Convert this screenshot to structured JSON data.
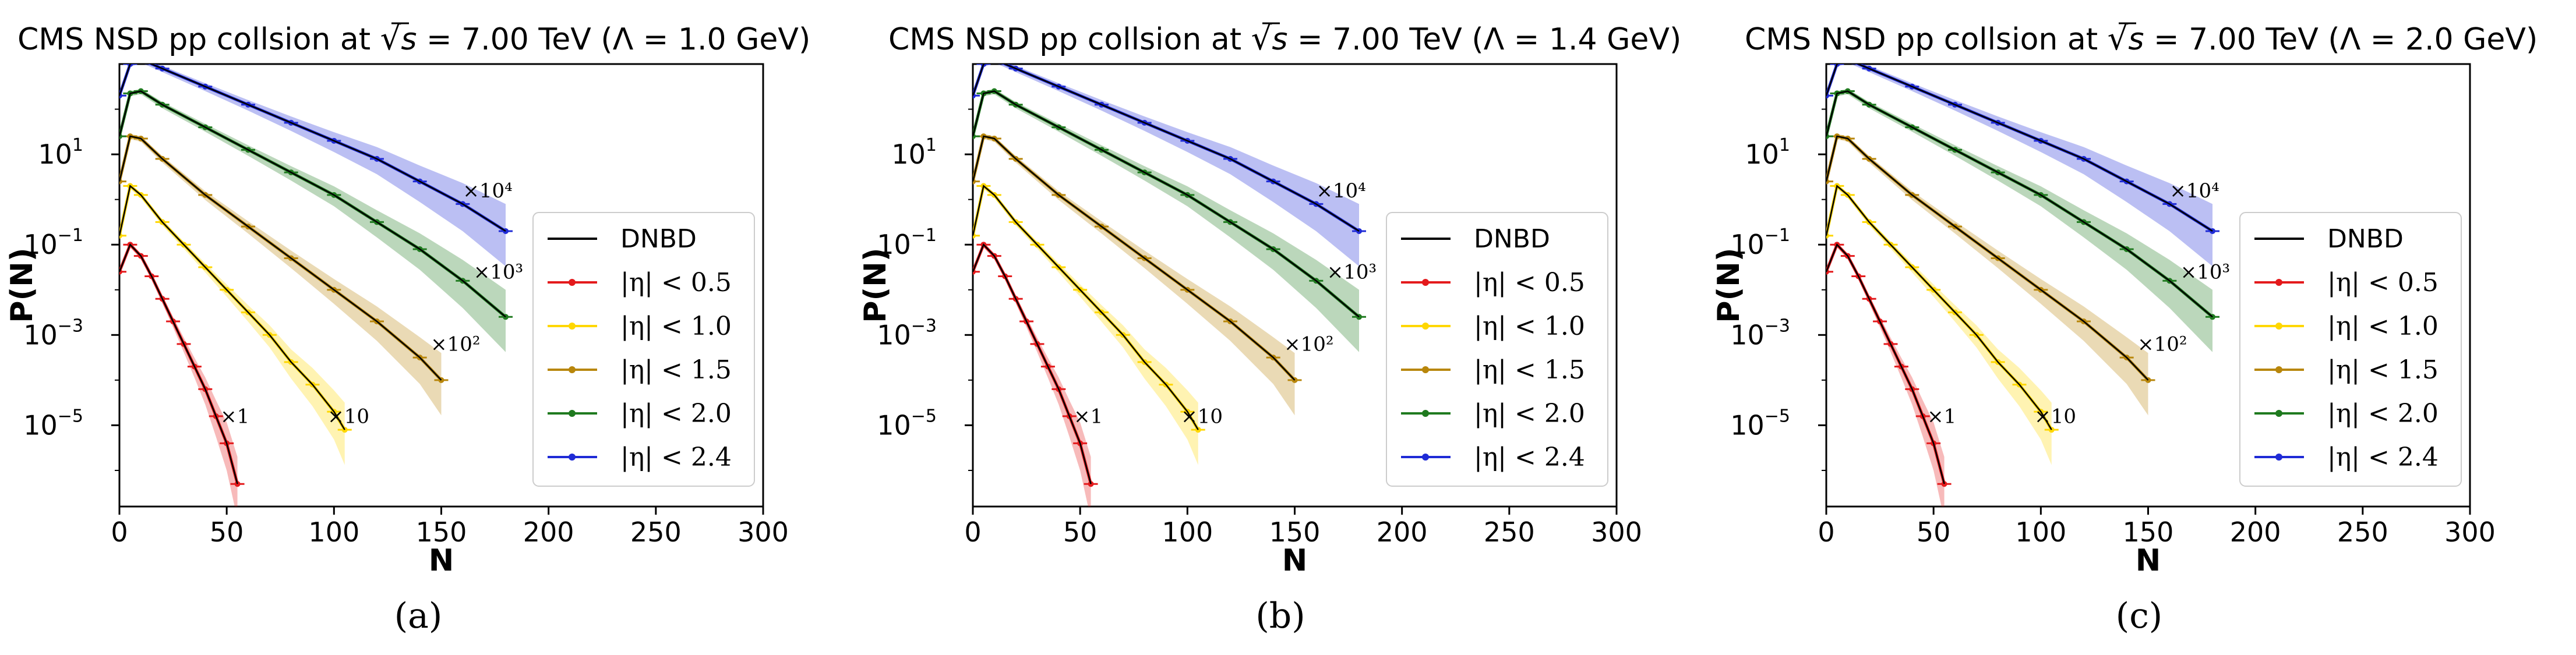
{
  "colors": {
    "model": "#000000",
    "eta05": "#e41a1c",
    "eta10": "#ffd700",
    "eta15": "#b8860b",
    "eta20": "#1f7a1f",
    "eta24": "#1f2bd6"
  },
  "chart_data": [
    {
      "type": "line",
      "title": "CMS NSD pp collsion at √s = 7.00 TeV (Λ = 1.0 GeV)",
      "title_parts": {
        "prefix": "CMS NSD pp collsion at ",
        "sqrt": "√",
        "s": "s",
        "eq": " = 7.00 TeV (",
        "lambda": "Λ = 1.0 GeV",
        "close": ")"
      },
      "sublabel": "(a)",
      "xlabel": "N",
      "ylabel": "P(N)",
      "xlim": [
        0,
        300
      ],
      "ylim_log10": [
        -6.8,
        3.0
      ],
      "xticks": [
        "0",
        "50",
        "100",
        "150",
        "200",
        "250",
        "300"
      ],
      "yticks": [
        {
          "base": "10",
          "exp": "1"
        },
        {
          "base": "10",
          "exp": "−1"
        },
        {
          "base": "10",
          "exp": "−3"
        },
        {
          "base": "10",
          "exp": "−5"
        }
      ],
      "legend": {
        "placement": "center-right",
        "model": "DNBD",
        "entries": [
          "|η| < 0.5",
          "|η| < 1.0",
          "|η| < 1.5",
          "|η| < 2.0",
          "|η| < 2.4"
        ]
      },
      "multipliers": [
        "×1",
        "×10",
        "×10²",
        "×10³",
        "×10⁴"
      ],
      "series": [
        {
          "name": "|η| < 0.5",
          "color": "eta05",
          "x": [
            0,
            5,
            10,
            15,
            20,
            25,
            30,
            35,
            40,
            45,
            50,
            55
          ],
          "log10_y": [
            -1.6,
            -1.0,
            -1.25,
            -1.7,
            -2.2,
            -2.7,
            -3.2,
            -3.7,
            -4.2,
            -4.8,
            -5.4,
            -6.3
          ]
        },
        {
          "name": "|η| < 1.0",
          "color": "eta10",
          "x": [
            0,
            5,
            10,
            20,
            30,
            40,
            50,
            60,
            70,
            80,
            90,
            100,
            105
          ],
          "log10_y": [
            -0.8,
            0.3,
            0.1,
            -0.5,
            -1.0,
            -1.5,
            -2.0,
            -2.5,
            -3.0,
            -3.6,
            -4.1,
            -4.7,
            -5.1
          ]
        },
        {
          "name": "|η| < 1.5",
          "color": "eta15",
          "x": [
            0,
            5,
            10,
            20,
            40,
            60,
            80,
            100,
            120,
            140,
            150
          ],
          "log10_y": [
            0.4,
            1.4,
            1.35,
            0.9,
            0.1,
            -0.6,
            -1.3,
            -2.0,
            -2.7,
            -3.5,
            -4.0
          ]
        },
        {
          "name": "|η| < 2.0",
          "color": "eta20",
          "x": [
            0,
            5,
            10,
            20,
            40,
            60,
            80,
            100,
            120,
            140,
            160,
            180
          ],
          "log10_y": [
            1.4,
            2.35,
            2.4,
            2.1,
            1.6,
            1.1,
            0.6,
            0.1,
            -0.5,
            -1.1,
            -1.8,
            -2.6
          ]
        },
        {
          "name": "|η| < 2.4",
          "color": "eta24",
          "x": [
            0,
            5,
            10,
            20,
            40,
            60,
            80,
            100,
            120,
            140,
            160,
            180
          ],
          "log10_y": [
            2.3,
            3.0,
            3.1,
            2.9,
            2.5,
            2.1,
            1.7,
            1.3,
            0.9,
            0.4,
            -0.1,
            -0.7
          ]
        }
      ]
    },
    {
      "type": "line",
      "title": "CMS NSD pp collsion at √s = 7.00 TeV (Λ = 1.4 GeV)",
      "title_parts": {
        "prefix": "CMS NSD pp collsion at ",
        "sqrt": "√",
        "s": "s",
        "eq": " = 7.00 TeV (",
        "lambda": "Λ = 1.4 GeV",
        "close": ")"
      },
      "sublabel": "(b)",
      "xlabel": "N",
      "ylabel": "P(N)",
      "xlim": [
        0,
        300
      ],
      "ylim_log10": [
        -6.8,
        3.0
      ],
      "xticks": [
        "0",
        "50",
        "100",
        "150",
        "200",
        "250",
        "300"
      ],
      "yticks": [
        {
          "base": "10",
          "exp": "1"
        },
        {
          "base": "10",
          "exp": "−1"
        },
        {
          "base": "10",
          "exp": "−3"
        },
        {
          "base": "10",
          "exp": "−5"
        }
      ],
      "legend": {
        "placement": "center-right",
        "model": "DNBD",
        "entries": [
          "|η| < 0.5",
          "|η| < 1.0",
          "|η| < 1.5",
          "|η| < 2.0",
          "|η| < 2.4"
        ]
      },
      "multipliers": [
        "×1",
        "×10",
        "×10²",
        "×10³",
        "×10⁴"
      ],
      "series": [
        {
          "name": "|η| < 0.5",
          "color": "eta05",
          "x": [
            0,
            5,
            10,
            15,
            20,
            25,
            30,
            35,
            40,
            45,
            50,
            55
          ],
          "log10_y": [
            -1.6,
            -1.0,
            -1.25,
            -1.7,
            -2.2,
            -2.7,
            -3.2,
            -3.7,
            -4.2,
            -4.8,
            -5.4,
            -6.3
          ]
        },
        {
          "name": "|η| < 1.0",
          "color": "eta10",
          "x": [
            0,
            5,
            10,
            20,
            30,
            40,
            50,
            60,
            70,
            80,
            90,
            100,
            105
          ],
          "log10_y": [
            -0.8,
            0.3,
            0.1,
            -0.5,
            -1.0,
            -1.5,
            -2.0,
            -2.5,
            -3.0,
            -3.6,
            -4.1,
            -4.7,
            -5.1
          ]
        },
        {
          "name": "|η| < 1.5",
          "color": "eta15",
          "x": [
            0,
            5,
            10,
            20,
            40,
            60,
            80,
            100,
            120,
            140,
            150
          ],
          "log10_y": [
            0.4,
            1.4,
            1.35,
            0.9,
            0.1,
            -0.6,
            -1.3,
            -2.0,
            -2.7,
            -3.5,
            -4.0
          ]
        },
        {
          "name": "|η| < 2.0",
          "color": "eta20",
          "x": [
            0,
            5,
            10,
            20,
            40,
            60,
            80,
            100,
            120,
            140,
            160,
            180
          ],
          "log10_y": [
            1.4,
            2.35,
            2.4,
            2.1,
            1.6,
            1.1,
            0.6,
            0.1,
            -0.5,
            -1.1,
            -1.8,
            -2.6
          ]
        },
        {
          "name": "|η| < 2.4",
          "color": "eta24",
          "x": [
            0,
            5,
            10,
            20,
            40,
            60,
            80,
            100,
            120,
            140,
            160,
            180
          ],
          "log10_y": [
            2.3,
            3.0,
            3.1,
            2.9,
            2.5,
            2.1,
            1.7,
            1.3,
            0.9,
            0.4,
            -0.1,
            -0.7
          ]
        }
      ]
    },
    {
      "type": "line",
      "title": "CMS NSD pp collsion at √s = 7.00 TeV (Λ = 2.0 GeV)",
      "title_parts": {
        "prefix": "CMS NSD pp collsion at ",
        "sqrt": "√",
        "s": "s",
        "eq": " = 7.00 TeV (",
        "lambda": "Λ = 2.0 GeV",
        "close": ")"
      },
      "sublabel": "(c)",
      "xlabel": "N",
      "ylabel": "P(N)",
      "xlim": [
        0,
        300
      ],
      "ylim_log10": [
        -6.8,
        3.0
      ],
      "xticks": [
        "0",
        "50",
        "100",
        "150",
        "200",
        "250",
        "300"
      ],
      "yticks": [
        {
          "base": "10",
          "exp": "1"
        },
        {
          "base": "10",
          "exp": "−1"
        },
        {
          "base": "10",
          "exp": "−3"
        },
        {
          "base": "10",
          "exp": "−5"
        }
      ],
      "legend": {
        "placement": "center-right",
        "model": "DNBD",
        "entries": [
          "|η| < 0.5",
          "|η| < 1.0",
          "|η| < 1.5",
          "|η| < 2.0",
          "|η| < 2.4"
        ]
      },
      "multipliers": [
        "×1",
        "×10",
        "×10²",
        "×10³",
        "×10⁴"
      ],
      "series": [
        {
          "name": "|η| < 0.5",
          "color": "eta05",
          "x": [
            0,
            5,
            10,
            15,
            20,
            25,
            30,
            35,
            40,
            45,
            50,
            55
          ],
          "log10_y": [
            -1.6,
            -1.0,
            -1.25,
            -1.7,
            -2.2,
            -2.7,
            -3.2,
            -3.7,
            -4.2,
            -4.8,
            -5.4,
            -6.3
          ]
        },
        {
          "name": "|η| < 1.0",
          "color": "eta10",
          "x": [
            0,
            5,
            10,
            20,
            30,
            40,
            50,
            60,
            70,
            80,
            90,
            100,
            105
          ],
          "log10_y": [
            -0.8,
            0.3,
            0.1,
            -0.5,
            -1.0,
            -1.5,
            -2.0,
            -2.5,
            -3.0,
            -3.6,
            -4.1,
            -4.7,
            -5.1
          ]
        },
        {
          "name": "|η| < 1.5",
          "color": "eta15",
          "x": [
            0,
            5,
            10,
            20,
            40,
            60,
            80,
            100,
            120,
            140,
            150
          ],
          "log10_y": [
            0.4,
            1.4,
            1.35,
            0.9,
            0.1,
            -0.6,
            -1.3,
            -2.0,
            -2.7,
            -3.5,
            -4.0
          ]
        },
        {
          "name": "|η| < 2.0",
          "color": "eta20",
          "x": [
            0,
            5,
            10,
            20,
            40,
            60,
            80,
            100,
            120,
            140,
            160,
            180
          ],
          "log10_y": [
            1.4,
            2.35,
            2.4,
            2.1,
            1.6,
            1.1,
            0.6,
            0.1,
            -0.5,
            -1.1,
            -1.8,
            -2.6
          ]
        },
        {
          "name": "|η| < 2.4",
          "color": "eta24",
          "x": [
            0,
            5,
            10,
            20,
            40,
            60,
            80,
            100,
            120,
            140,
            160,
            180
          ],
          "log10_y": [
            2.3,
            3.0,
            3.1,
            2.9,
            2.5,
            2.1,
            1.7,
            1.3,
            0.9,
            0.4,
            -0.1,
            -0.7
          ]
        }
      ]
    }
  ]
}
